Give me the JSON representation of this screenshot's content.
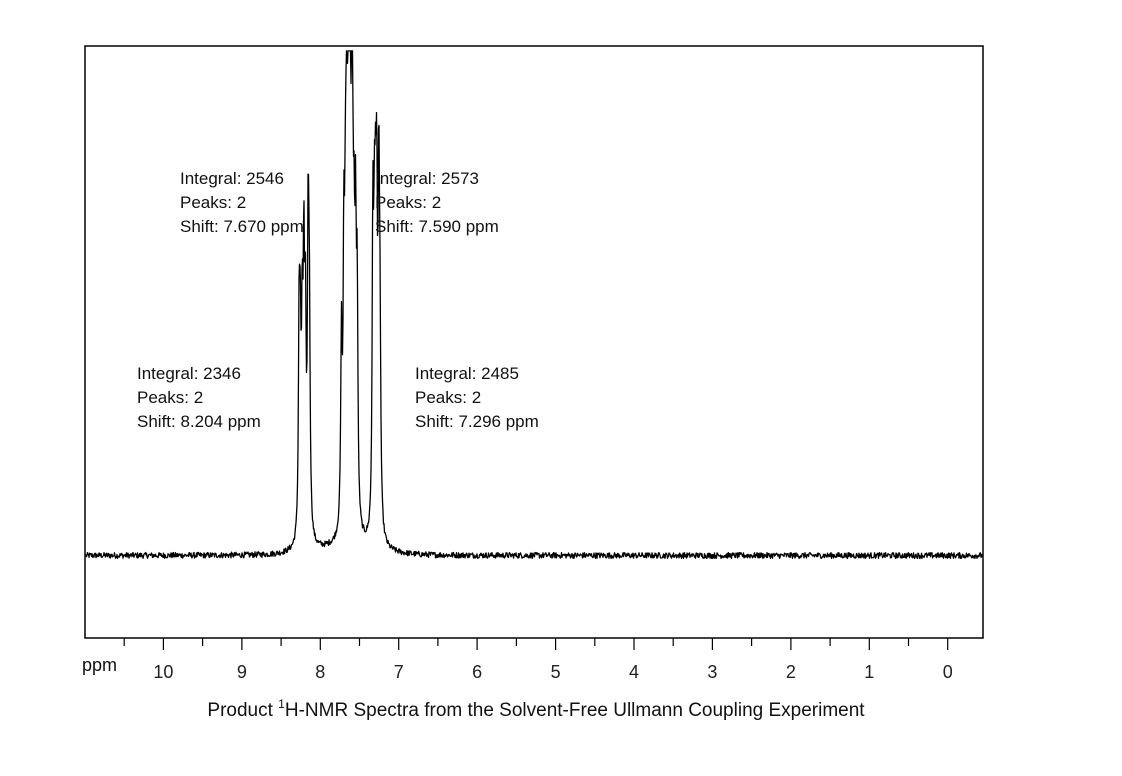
{
  "chart_data": {
    "type": "line",
    "title": "Product 1H-NMR Spectra from the Solvent-Free Ullmann Coupling Experiment",
    "caption": {
      "prefix": "Product ",
      "superscript": "1",
      "suffix": "H-NMR Spectra from the Solvent-Free Ullmann Coupling Experiment"
    },
    "xlabel": "ppm",
    "ylabel": "",
    "xlim": [
      11.0,
      -0.45
    ],
    "ylim": [
      -0.17,
      1.05
    ],
    "x_reversed": true,
    "x_ticks": [
      "10",
      "9",
      "8",
      "7",
      "6",
      "5",
      "4",
      "3",
      "2",
      "1",
      "0"
    ],
    "x_tick_values": [
      10,
      9,
      8,
      7,
      6,
      5,
      4,
      3,
      2,
      1,
      0
    ],
    "baseline_value": 0.0,
    "noise_amplitude": 0.006,
    "peaks": [
      {
        "shift": 8.27,
        "height": 0.4,
        "width": 0.01
      },
      {
        "shift": 8.255,
        "height": 0.36,
        "width": 0.012
      },
      {
        "shift": 8.23,
        "height": 0.38,
        "width": 0.01
      },
      {
        "shift": 8.21,
        "height": 0.5,
        "width": 0.01
      },
      {
        "shift": 8.19,
        "height": 0.42,
        "width": 0.011
      },
      {
        "shift": 8.155,
        "height": 0.57,
        "width": 0.01
      },
      {
        "shift": 8.14,
        "height": 0.44,
        "width": 0.012
      },
      {
        "shift": 7.73,
        "height": 0.38,
        "width": 0.011
      },
      {
        "shift": 7.7,
        "height": 0.5,
        "width": 0.01
      },
      {
        "shift": 7.68,
        "height": 0.48,
        "width": 0.012
      },
      {
        "shift": 7.665,
        "height": 0.62,
        "width": 0.01
      },
      {
        "shift": 7.645,
        "height": 0.7,
        "width": 0.01
      },
      {
        "shift": 7.635,
        "height": 1.0,
        "width": 0.006
      },
      {
        "shift": 7.62,
        "height": 0.66,
        "width": 0.01
      },
      {
        "shift": 7.6,
        "height": 0.55,
        "width": 0.011
      },
      {
        "shift": 7.59,
        "height": 0.6,
        "width": 0.01
      },
      {
        "shift": 7.57,
        "height": 0.44,
        "width": 0.011
      },
      {
        "shift": 7.55,
        "height": 0.5,
        "width": 0.01
      },
      {
        "shift": 7.53,
        "height": 0.46,
        "width": 0.011
      },
      {
        "shift": 7.33,
        "height": 0.6,
        "width": 0.01
      },
      {
        "shift": 7.31,
        "height": 0.48,
        "width": 0.011
      },
      {
        "shift": 7.295,
        "height": 0.44,
        "width": 0.011
      },
      {
        "shift": 7.28,
        "height": 0.55,
        "width": 0.01
      },
      {
        "shift": 7.255,
        "height": 0.62,
        "width": 0.01
      },
      {
        "shift": 7.24,
        "height": 0.4,
        "width": 0.012
      }
    ],
    "annotations": [
      {
        "lines": [
          "Integral: 2546",
          "Peaks: 2",
          "Shift: 7.670 ppm"
        ],
        "anchor": "upper-left-of-peak"
      },
      {
        "lines": [
          "Integral: 2573",
          "Peaks: 2",
          "Shift: 7.590 ppm"
        ],
        "anchor": "upper-right-of-peak"
      },
      {
        "lines": [
          "Integral: 2346",
          "Peaks: 2",
          "Shift: 8.204 ppm"
        ],
        "anchor": "left-of-peaks"
      },
      {
        "lines": [
          "Integral: 2485",
          "Peaks: 2",
          "Shift: 7.296 ppm"
        ],
        "anchor": "right-of-peaks"
      }
    ],
    "colors": {
      "line": "#000000",
      "frame": "#000000",
      "background": "#ffffff"
    }
  }
}
